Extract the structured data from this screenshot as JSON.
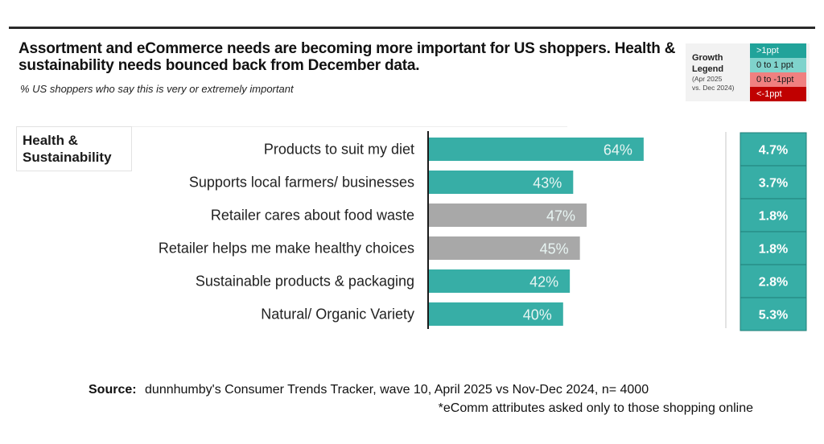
{
  "header": {
    "title": "Assortment and eCommerce needs are becoming more important for US shoppers. Health & sustainability needs bounced back from December data.",
    "subtitle": "% US shoppers who say this is very or extremely important"
  },
  "legend": {
    "title_line1": "Growth",
    "title_line2": "Legend",
    "sub_line1": "(Apr 2025",
    "sub_line2": "vs. Dec 2024)",
    "items": [
      {
        "label": ">1ppt",
        "color": "#21a39a",
        "text_color": "#ffffff"
      },
      {
        "label": "0 to 1 ppt",
        "color": "#7fd3cc",
        "text_color": "#1a1a1a"
      },
      {
        "label": "0 to -1ppt",
        "color": "#f08080",
        "text_color": "#1a1a1a"
      },
      {
        "label": "<-1ppt",
        "color": "#c00000",
        "text_color": "#ffffff"
      }
    ]
  },
  "section": {
    "label_line1": "Health &",
    "label_line2": "Sustainability"
  },
  "colors": {
    "teal": "#37aea6",
    "gray": "#a8a8a8",
    "growth_cell": "#37aea6",
    "growth_border": "#1f7f78",
    "axis": "#1a1a1a"
  },
  "chart_data": {
    "type": "bar",
    "orientation": "horizontal",
    "title": "Assortment and eCommerce needs are becoming more important for US shoppers. Health & sustainability needs bounced back from December data.",
    "subtitle": "% US shoppers who say this is very or extremely important",
    "xlabel": "",
    "ylabel": "",
    "xlim": [
      0,
      100
    ],
    "grid": false,
    "legend_position": "top-right",
    "categories": [
      "Products to suit my diet",
      "Supports local farmers/ businesses",
      "Retailer cares about food waste",
      "Retailer helps me make healthy choices",
      "Sustainable products & packaging",
      "Natural/ Organic Variety"
    ],
    "values": [
      64,
      43,
      47,
      45,
      42,
      40
    ],
    "value_labels": [
      "64%",
      "43%",
      "47%",
      "45%",
      "42%",
      "40%"
    ],
    "bar_colors": [
      "teal",
      "teal",
      "gray",
      "gray",
      "teal",
      "teal"
    ],
    "growth_series": {
      "name": "Growth (Apr 2025 vs. Dec 2024)",
      "values": [
        4.7,
        3.7,
        1.8,
        1.8,
        2.8,
        5.3
      ],
      "labels": [
        "4.7%",
        "3.7%",
        "1.8%",
        "1.8%",
        "2.8%",
        "5.3%"
      ],
      "category": [
        ">1ppt",
        ">1ppt",
        ">1ppt",
        ">1ppt",
        ">1ppt",
        ">1ppt"
      ]
    }
  },
  "footer": {
    "source_label": "Source:",
    "source_text": "dunnhumby's Consumer Trends Tracker, wave 10, April 2025 vs Nov-Dec 2024, n= 4000",
    "footnote": "*eComm attributes asked only to those shopping online"
  }
}
